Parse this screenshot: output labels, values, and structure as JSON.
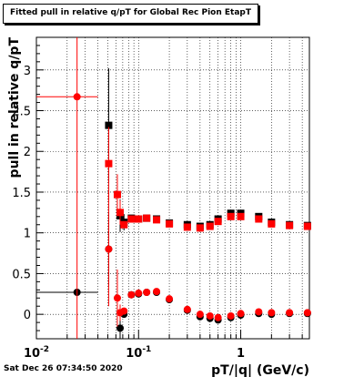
{
  "window": {
    "timestamp": "Sat Dec 26 07:34:50 2020"
  },
  "chart_data": {
    "type": "scatter",
    "title": "Fitted pull in relative q/pT for Global Rec Pion EtapT",
    "xlabel": "pT/|q| (GeV/c)",
    "ylabel": "pull in relative q/pT",
    "xscale": "log",
    "xlim": [
      0.01,
      4.7
    ],
    "ylim": [
      -0.3,
      3.4
    ],
    "grid": true,
    "x_ticks": [
      {
        "base": "10",
        "exp": "-2",
        "value": 0.01
      },
      {
        "base": "10",
        "exp": "-1",
        "value": 0.1
      },
      {
        "base": "1",
        "exp": "",
        "value": 1
      }
    ],
    "y_ticks": [
      "0",
      "0.5",
      "1",
      "1.5",
      "2",
      "2.5",
      "3"
    ],
    "colors": {
      "black_series": "#000000",
      "red_series": "#ff0000"
    },
    "series": [
      {
        "marker": "square",
        "color": "#000000",
        "points": [
          {
            "x": 0.051,
            "y": 2.32,
            "yerr": 0.7
          },
          {
            "x": 0.066,
            "y": 1.21,
            "yerr": 0.2
          },
          {
            "x": 0.072,
            "y": 1.13,
            "yerr": 0.1
          },
          {
            "x": 0.085,
            "y": 1.18
          },
          {
            "x": 0.1,
            "y": 1.17
          },
          {
            "x": 0.12,
            "y": 1.18
          },
          {
            "x": 0.15,
            "y": 1.17
          },
          {
            "x": 0.2,
            "y": 1.12
          },
          {
            "x": 0.3,
            "y": 1.1
          },
          {
            "x": 0.4,
            "y": 1.08
          },
          {
            "x": 0.5,
            "y": 1.1
          },
          {
            "x": 0.6,
            "y": 1.17
          },
          {
            "x": 0.8,
            "y": 1.24
          },
          {
            "x": 1.0,
            "y": 1.24
          },
          {
            "x": 1.5,
            "y": 1.2
          },
          {
            "x": 2.0,
            "y": 1.13
          },
          {
            "x": 3.0,
            "y": 1.1
          },
          {
            "x": 4.5,
            "y": 1.09
          }
        ]
      },
      {
        "marker": "circle",
        "color": "#000000",
        "points": [
          {
            "x": 0.025,
            "y": 0.27,
            "xerr": [
              0.01,
              0.04
            ]
          },
          {
            "x": 0.051,
            "y": 0.8,
            "yerr": 0.45
          },
          {
            "x": 0.066,
            "y": -0.17,
            "yerr": 0.15
          },
          {
            "x": 0.072,
            "y": 0.0
          },
          {
            "x": 0.085,
            "y": 0.24
          },
          {
            "x": 0.1,
            "y": 0.25
          },
          {
            "x": 0.12,
            "y": 0.27
          },
          {
            "x": 0.15,
            "y": 0.27
          },
          {
            "x": 0.2,
            "y": 0.18
          },
          {
            "x": 0.3,
            "y": 0.05
          },
          {
            "x": 0.4,
            "y": -0.03
          },
          {
            "x": 0.5,
            "y": -0.05
          },
          {
            "x": 0.6,
            "y": -0.07
          },
          {
            "x": 0.8,
            "y": -0.04
          },
          {
            "x": 1.0,
            "y": -0.01
          },
          {
            "x": 1.5,
            "y": 0.01
          },
          {
            "x": 2.0,
            "y": 0.0
          },
          {
            "x": 3.0,
            "y": 0.01
          },
          {
            "x": 4.5,
            "y": 0.01
          }
        ]
      },
      {
        "marker": "square",
        "color": "#ff0000",
        "points": [
          {
            "x": 0.051,
            "y": 1.85,
            "yerr": 0.45
          },
          {
            "x": 0.062,
            "y": 1.47,
            "yerr": 0.25
          },
          {
            "x": 0.066,
            "y": 1.25,
            "yerr": 0.15
          },
          {
            "x": 0.072,
            "y": 1.1
          },
          {
            "x": 0.085,
            "y": 1.17
          },
          {
            "x": 0.1,
            "y": 1.17
          },
          {
            "x": 0.12,
            "y": 1.18
          },
          {
            "x": 0.15,
            "y": 1.16
          },
          {
            "x": 0.2,
            "y": 1.11
          },
          {
            "x": 0.3,
            "y": 1.07
          },
          {
            "x": 0.4,
            "y": 1.06
          },
          {
            "x": 0.5,
            "y": 1.08
          },
          {
            "x": 0.6,
            "y": 1.14
          },
          {
            "x": 0.8,
            "y": 1.2
          },
          {
            "x": 1.0,
            "y": 1.2
          },
          {
            "x": 1.5,
            "y": 1.17
          },
          {
            "x": 2.0,
            "y": 1.11
          },
          {
            "x": 3.0,
            "y": 1.09
          },
          {
            "x": 4.5,
            "y": 1.08
          }
        ]
      },
      {
        "marker": "circle",
        "color": "#ff0000",
        "points": [
          {
            "x": 0.025,
            "y": 2.67,
            "xerr": [
              0.01,
              0.04
            ],
            "yerr": 2.97
          },
          {
            "x": 0.051,
            "y": 0.8,
            "yerr": 0.7
          },
          {
            "x": 0.062,
            "y": 0.2,
            "yerr": 0.35
          },
          {
            "x": 0.066,
            "y": 0.02,
            "yerr": 0.1
          },
          {
            "x": 0.072,
            "y": 0.04
          },
          {
            "x": 0.085,
            "y": 0.24
          },
          {
            "x": 0.1,
            "y": 0.26
          },
          {
            "x": 0.12,
            "y": 0.27
          },
          {
            "x": 0.15,
            "y": 0.28
          },
          {
            "x": 0.2,
            "y": 0.19
          },
          {
            "x": 0.3,
            "y": 0.06
          },
          {
            "x": 0.4,
            "y": 0.0
          },
          {
            "x": 0.5,
            "y": -0.02
          },
          {
            "x": 0.6,
            "y": -0.04
          },
          {
            "x": 0.8,
            "y": -0.02
          },
          {
            "x": 1.0,
            "y": 0.01
          },
          {
            "x": 1.5,
            "y": 0.03
          },
          {
            "x": 2.0,
            "y": 0.02
          },
          {
            "x": 3.0,
            "y": 0.02
          },
          {
            "x": 4.5,
            "y": 0.02
          }
        ]
      }
    ]
  }
}
